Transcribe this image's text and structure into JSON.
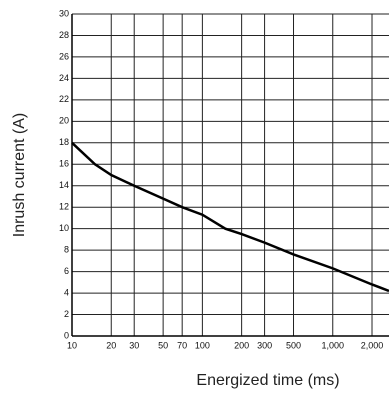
{
  "chart_data": {
    "type": "line",
    "x_label": "Energized time (ms)",
    "y_label": "Inrush current  (A)",
    "x": [
      10,
      15,
      20,
      30,
      50,
      70,
      100,
      150,
      200,
      300,
      500,
      1000,
      2000,
      2700
    ],
    "values": [
      18,
      16,
      15,
      14,
      12.8,
      12,
      11.3,
      10,
      9.5,
      8.7,
      7.6,
      6.3,
      4.8,
      4.2
    ],
    "color": "#000000",
    "log_x": true,
    "grid": true,
    "xlim": [
      10,
      2700
    ],
    "xticks": [
      10,
      20,
      30,
      50,
      70,
      100,
      200,
      300,
      500,
      {
        "value": 1000,
        "label": "1,000"
      },
      {
        "value": 2000,
        "label": "2,000"
      }
    ],
    "ylim": [
      0,
      30
    ],
    "yticks": [
      0,
      2,
      4,
      6,
      8,
      10,
      12,
      14,
      16,
      18,
      20,
      22,
      24,
      26,
      28,
      30
    ]
  }
}
